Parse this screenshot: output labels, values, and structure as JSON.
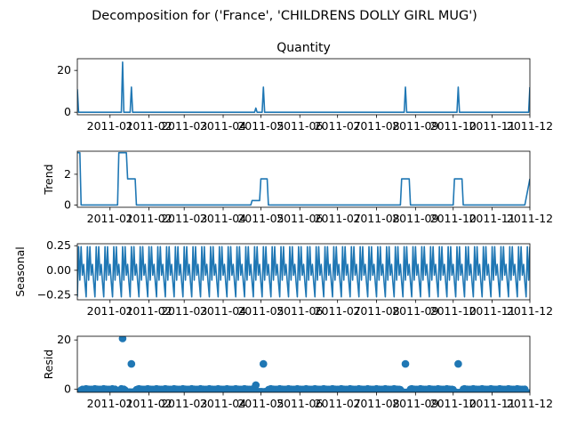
{
  "figure": {
    "suptitle": "Decomposition for ('France', 'CHILDRENS DOLLY GIRL MUG')",
    "line_color": "#1f77b4"
  },
  "chart_data": [
    {
      "type": "line",
      "panel": "observed",
      "title": "Quantity",
      "ylabel": "",
      "xlim": [
        "2010-12-06",
        "2011-12-01"
      ],
      "ylim": [
        -1.2,
        25.6
      ],
      "yticks": [
        0,
        20
      ],
      "xticks": [
        "2011-01-01",
        "2011-02-01",
        "2011-03-01",
        "2011-04-01",
        "2011-05-01",
        "2011-06-01",
        "2011-07-01",
        "2011-08-01",
        "2011-09-01",
        "2011-10-01",
        "2011-11-01",
        "2011-12-01"
      ],
      "xtick_labels": [
        "2011-01",
        "2011-02",
        "2011-03",
        "2011-04",
        "2011-05",
        "2011-06",
        "2011-07",
        "2011-08",
        "2011-09",
        "2011-10",
        "2011-11",
        "2011-12"
      ],
      "x": [
        "2010-12-06",
        "2010-12-07",
        "2011-01-10",
        "2011-01-11",
        "2011-01-12",
        "2011-01-17",
        "2011-01-18",
        "2011-01-19",
        "2011-04-26",
        "2011-04-27",
        "2011-04-28",
        "2011-05-02",
        "2011-05-03",
        "2011-05-04",
        "2011-08-23",
        "2011-08-24",
        "2011-08-25",
        "2011-10-04",
        "2011-10-05",
        "2011-10-06",
        "2011-11-30",
        "2011-12-01"
      ],
      "y": [
        11,
        0,
        0,
        24,
        0,
        0,
        12,
        0,
        0,
        2,
        0,
        0,
        12,
        0,
        0,
        12,
        0,
        0,
        12,
        0,
        0,
        12
      ]
    },
    {
      "type": "line",
      "panel": "trend",
      "title": "",
      "ylabel": "Trend",
      "xlim": [
        "2010-12-06",
        "2011-12-01"
      ],
      "ylim": [
        -0.15,
        3.5
      ],
      "yticks": [
        0,
        2
      ],
      "xticks": [
        "2011-01-01",
        "2011-02-01",
        "2011-03-01",
        "2011-04-01",
        "2011-05-01",
        "2011-06-01",
        "2011-07-01",
        "2011-08-01",
        "2011-09-01",
        "2011-10-01",
        "2011-11-01",
        "2011-12-01"
      ],
      "xtick_labels": [
        "2011-01",
        "2011-02",
        "2011-03",
        "2011-04",
        "2011-05",
        "2011-06",
        "2011-07",
        "2011-08",
        "2011-09",
        "2011-10",
        "2011-11",
        "2011-12"
      ],
      "x": [
        "2010-12-06",
        "2010-12-08",
        "2010-12-09",
        "2011-01-07",
        "2011-01-08",
        "2011-01-14",
        "2011-01-15",
        "2011-01-21",
        "2011-01-22",
        "2011-04-23",
        "2011-04-24",
        "2011-04-30",
        "2011-05-01",
        "2011-05-06",
        "2011-05-07",
        "2011-08-20",
        "2011-08-21",
        "2011-08-27",
        "2011-08-28",
        "2011-10-01",
        "2011-10-02",
        "2011-10-08",
        "2011-10-09",
        "2011-11-27",
        "2011-12-01"
      ],
      "y": [
        3.4,
        3.4,
        0,
        0,
        3.4,
        3.4,
        1.7,
        1.7,
        0,
        0,
        0.29,
        0.29,
        1.7,
        1.7,
        0,
        0,
        1.7,
        1.7,
        0,
        0,
        1.7,
        1.7,
        0,
        0,
        1.7
      ]
    },
    {
      "type": "line",
      "panel": "seasonal",
      "title": "",
      "ylabel": "Seasonal",
      "xlim": [
        "2010-12-06",
        "2011-12-01"
      ],
      "ylim": [
        -0.3,
        0.27
      ],
      "yticks": [
        -0.25,
        0.0,
        0.25
      ],
      "ytick_labels": [
        "−0.25",
        "0.00",
        "0.25"
      ],
      "xticks": [
        "2011-01-01",
        "2011-02-01",
        "2011-03-01",
        "2011-04-01",
        "2011-05-01",
        "2011-06-01",
        "2011-07-01",
        "2011-08-01",
        "2011-09-01",
        "2011-10-01",
        "2011-11-01",
        "2011-12-01"
      ],
      "xtick_labels": [
        "2011-01",
        "2011-02",
        "2011-03",
        "2011-04",
        "2011-05",
        "2011-06",
        "2011-07",
        "2011-08",
        "2011-09",
        "2011-10",
        "2011-11",
        "2011-12"
      ],
      "period_days": 7,
      "pattern": [
        -0.27,
        0.24,
        -0.1,
        0.24,
        -0.05,
        0.06,
        -0.12
      ],
      "start": "2010-12-06",
      "end": "2011-12-01"
    },
    {
      "type": "scatter",
      "panel": "resid",
      "title": "",
      "ylabel": "Resid",
      "xlim": [
        "2010-12-06",
        "2011-12-01"
      ],
      "ylim": [
        -1.2,
        21.5
      ],
      "yticks": [
        0,
        20
      ],
      "xticks": [
        "2011-01-01",
        "2011-02-01",
        "2011-03-01",
        "2011-04-01",
        "2011-05-01",
        "2011-06-01",
        "2011-07-01",
        "2011-08-01",
        "2011-09-01",
        "2011-10-01",
        "2011-11-01",
        "2011-12-01"
      ],
      "xtick_labels": [
        "2011-01",
        "2011-02",
        "2011-03",
        "2011-04",
        "2011-05",
        "2011-06",
        "2011-07",
        "2011-08",
        "2011-09",
        "2011-10",
        "2011-11",
        "2011-12"
      ],
      "x": [
        "2011-01-11",
        "2011-01-18",
        "2011-04-27",
        "2011-05-03",
        "2011-08-24",
        "2011-10-05"
      ],
      "y": [
        20.6,
        10.3,
        1.7,
        10.3,
        10.3,
        10.3
      ],
      "baseline": {
        "start": "2010-12-06",
        "end": "2011-12-01",
        "pattern": [
          0.27,
          -0.24,
          0.1,
          -0.24,
          0.05,
          -0.06,
          0.12
        ],
        "dips": [
          {
            "start": "2010-12-06",
            "end": "2010-12-08",
            "value": -1.3
          },
          {
            "start": "2011-01-07",
            "end": "2011-01-09",
            "value": -1.2
          },
          {
            "start": "2011-01-14",
            "end": "2011-01-21",
            "value": -1.0
          },
          {
            "start": "2011-04-28",
            "end": "2011-05-06",
            "value": -0.9
          },
          {
            "start": "2011-08-21",
            "end": "2011-08-27",
            "value": -1.1
          },
          {
            "start": "2011-10-02",
            "end": "2011-10-08",
            "value": -1.2
          },
          {
            "start": "2011-11-28",
            "end": "2011-12-01",
            "value": -1.4
          }
        ]
      }
    }
  ]
}
